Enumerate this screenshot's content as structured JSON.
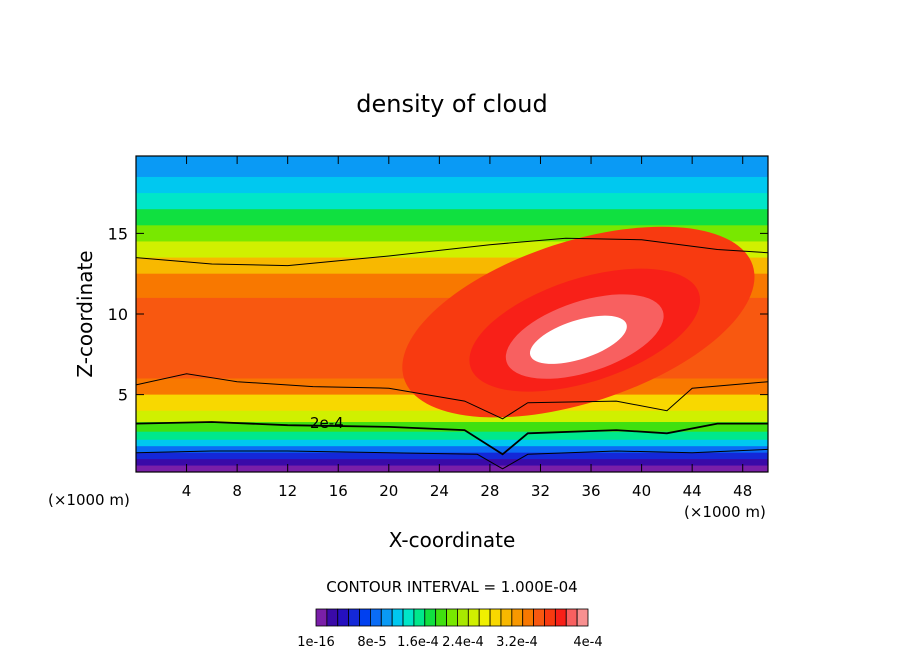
{
  "chart_data": {
    "type": "heatmap",
    "title": "density of cloud",
    "xlabel": "X-coordinate",
    "ylabel": "Z-coordinate",
    "x_unit_label": "(×1000 m)",
    "x_unit_label_right": "(×1000 m)",
    "xlim": [
      0,
      50
    ],
    "ylim": [
      0.2,
      19.8
    ],
    "x_ticks": [
      "4",
      "8",
      "12",
      "16",
      "20",
      "24",
      "28",
      "32",
      "36",
      "40",
      "44",
      "48"
    ],
    "y_ticks": [
      "5",
      "10",
      "15"
    ],
    "contour_interval_label": "CONTOUR INTERVAL = 1.000E-04",
    "contour_label": "2e-4",
    "colorbar_labels": [
      "1e-16",
      "8e-5",
      "1.6e-4",
      "2.4e-4",
      "3.2e-4",
      "4e-4"
    ],
    "colorbar_min": 0,
    "colorbar_max": 0.00042,
    "colorbar_colors": [
      "#7a1fa8",
      "#3a0aa8",
      "#2510c0",
      "#1428d8",
      "#0040f0",
      "#0a6cf5",
      "#0a9af5",
      "#00c8f0",
      "#00e6c8",
      "#00e88c",
      "#10e040",
      "#40e010",
      "#78e800",
      "#a8e800",
      "#d0f000",
      "#f0f000",
      "#f8d800",
      "#f8b800",
      "#f89800",
      "#f87800",
      "#f85810",
      "#f83a10",
      "#f82018",
      "#f86060",
      "#f89090"
    ],
    "field_bands": [
      {
        "z": 0.6,
        "level": 0.0
      },
      {
        "z": 1.0,
        "level": 2e-05
      },
      {
        "z": 1.4,
        "level": 6e-05
      },
      {
        "z": 1.8,
        "level": 9e-05
      },
      {
        "z": 2.2,
        "level": 0.00012
      },
      {
        "z": 2.7,
        "level": 0.00016
      },
      {
        "z": 3.3,
        "level": 0.0002
      },
      {
        "z": 4.0,
        "level": 0.00024
      },
      {
        "z": 5.0,
        "level": 0.00028
      },
      {
        "z": 6.0,
        "level": 0.00032
      },
      {
        "z": 7.5,
        "level": 0.00034
      },
      {
        "z": 9.0,
        "level": 0.00035
      },
      {
        "z": 11.0,
        "level": 0.00034
      },
      {
        "z": 12.5,
        "level": 0.00032
      },
      {
        "z": 13.5,
        "level": 0.00029
      },
      {
        "z": 14.5,
        "level": 0.00025
      },
      {
        "z": 15.5,
        "level": 0.00021
      },
      {
        "z": 16.5,
        "level": 0.00018
      },
      {
        "z": 17.5,
        "level": 0.00015
      },
      {
        "z": 18.5,
        "level": 0.00013
      },
      {
        "z": 19.8,
        "level": 0.00011
      }
    ],
    "core_regions": [
      {
        "level": 0.00036,
        "cx": 35,
        "cz": 9.5,
        "rx": 14.5,
        "rz": 5.0
      },
      {
        "level": 0.00038,
        "cx": 35.5,
        "cz": 9.0,
        "rx": 9.5,
        "rz": 3.2
      },
      {
        "level": 0.0004,
        "cx": 35.5,
        "cz": 8.6,
        "rx": 6.5,
        "rz": 2.2
      },
      {
        "level": 0.00042,
        "cx": 35.0,
        "cz": 8.4,
        "rx": 4.0,
        "rz": 1.2
      }
    ],
    "contour_lines": [
      {
        "level": 0.0001,
        "points": [
          [
            0,
            1.4
          ],
          [
            6,
            1.5
          ],
          [
            12,
            1.5
          ],
          [
            20,
            1.4
          ],
          [
            27,
            1.3
          ],
          [
            29,
            0.4
          ],
          [
            31,
            1.3
          ],
          [
            38,
            1.5
          ],
          [
            44,
            1.4
          ],
          [
            50,
            1.6
          ]
        ]
      },
      {
        "level": 0.0002,
        "points": [
          [
            0,
            3.2
          ],
          [
            6,
            3.3
          ],
          [
            12,
            3.1
          ],
          [
            20,
            3.0
          ],
          [
            26,
            2.8
          ],
          [
            29,
            1.3
          ],
          [
            31,
            2.6
          ],
          [
            38,
            2.8
          ],
          [
            42,
            2.6
          ],
          [
            46,
            3.2
          ],
          [
            50,
            3.2
          ]
        ]
      },
      {
        "level": 0.0003,
        "points": [
          [
            0,
            5.6
          ],
          [
            4,
            6.3
          ],
          [
            8,
            5.8
          ],
          [
            14,
            5.5
          ],
          [
            20,
            5.4
          ],
          [
            26,
            4.6
          ],
          [
            29,
            3.5
          ],
          [
            31,
            4.5
          ],
          [
            38,
            4.6
          ],
          [
            42,
            4.0
          ],
          [
            44,
            5.4
          ],
          [
            50,
            5.8
          ]
        ]
      },
      {
        "level": 0.0003,
        "points": [
          [
            0,
            13.5
          ],
          [
            6,
            13.1
          ],
          [
            12,
            13.0
          ],
          [
            20,
            13.6
          ],
          [
            28,
            14.3
          ],
          [
            34,
            14.7
          ],
          [
            40,
            14.6
          ],
          [
            46,
            14.0
          ],
          [
            50,
            13.8
          ]
        ]
      }
    ]
  }
}
